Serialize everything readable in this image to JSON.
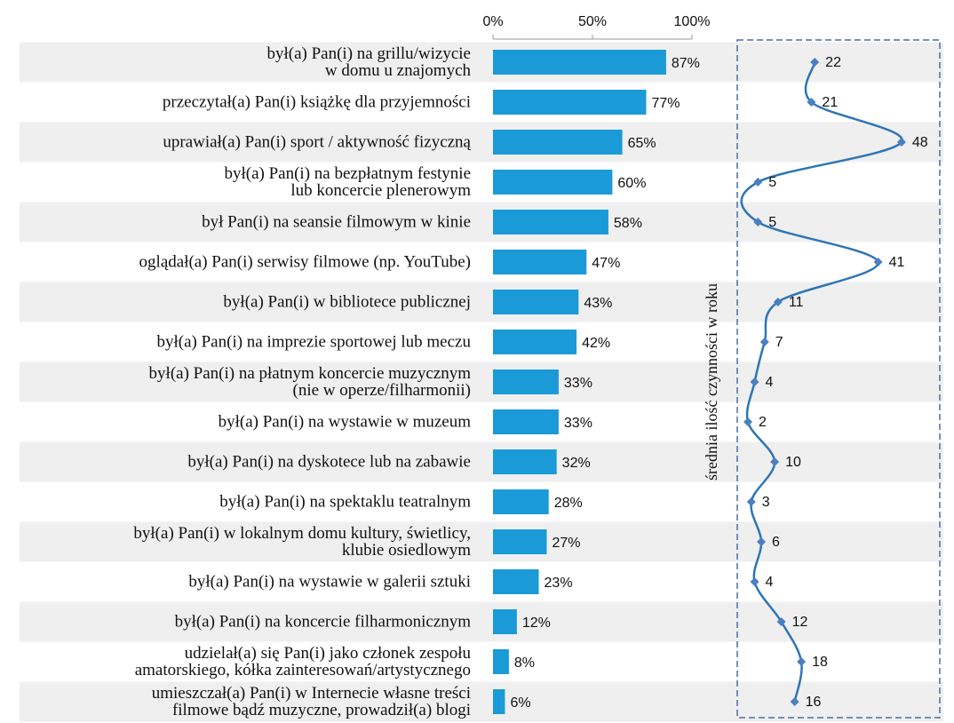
{
  "chart_data": {
    "type": "bar",
    "categories": [
      "był(a) Pan(i) na grillu/wizycie\nw domu u znajomych",
      "przeczytał(a) Pan(i) książkę dla przyjemności",
      "uprawiał(a) Pan(i) sport / aktywność fizyczną",
      "był(a) Pan(i) na bezpłatnym festynie\nlub koncercie plenerowym",
      "był Pan(i) na seansie filmowym w kinie",
      "oglądał(a) Pan(i) serwisy filmowe (np. YouTube)",
      "był(a) Pan(i)  w bibliotece publicznej",
      "był(a) Pan(i)  na imprezie sportowej lub meczu",
      "był(a) Pan(i) na płatnym koncercie muzycznym\n(nie w operze/filharmonii)",
      "był(a) Pan(i)  na wystawie w muzeum",
      "był(a) Pan(i) na dyskotece lub na zabawie",
      "był(a) Pan(i)  na spektaklu teatralnym",
      "był(a) Pan(i)  w lokalnym domu kultury, świetlicy,\nklubie osiedlowym",
      "był(a) Pan(i) na wystawie w galerii sztuki",
      "był(a) Pan(i) na koncercie filharmonicznym",
      "udzielał(a) się Pan(i) jako członek zespołu\namatorskiego, kółka zainteresowań/artystycznego",
      "umieszczał(a) Pan(i) w Internecie własne treści\nfilmowe bądź muzyczne, prowadził(a) blogi"
    ],
    "values": [
      87,
      77,
      65,
      60,
      58,
      47,
      43,
      42,
      33,
      33,
      32,
      28,
      27,
      23,
      12,
      8,
      6
    ],
    "value_labels": [
      "87%",
      "77%",
      "65%",
      "60%",
      "58%",
      "47%",
      "43%",
      "42%",
      "33%",
      "33%",
      "32%",
      "28%",
      "27%",
      "23%",
      "12%",
      "8%",
      "6%"
    ],
    "color": "#1a9ad6",
    "xlim": [
      0,
      100
    ],
    "xticks": [
      {
        "value": 0,
        "label": "0%"
      },
      {
        "value": 50,
        "label": "50%"
      },
      {
        "value": 100,
        "label": "100%"
      }
    ],
    "line": {
      "type": "line",
      "axis_label": "średnia ilość czynności w roku",
      "values": [
        22,
        21,
        48,
        5,
        5,
        41,
        11,
        7,
        4,
        2,
        10,
        3,
        6,
        4,
        12,
        18,
        16
      ],
      "color": "#2e75b6",
      "xlim": [
        0,
        60
      ]
    }
  }
}
